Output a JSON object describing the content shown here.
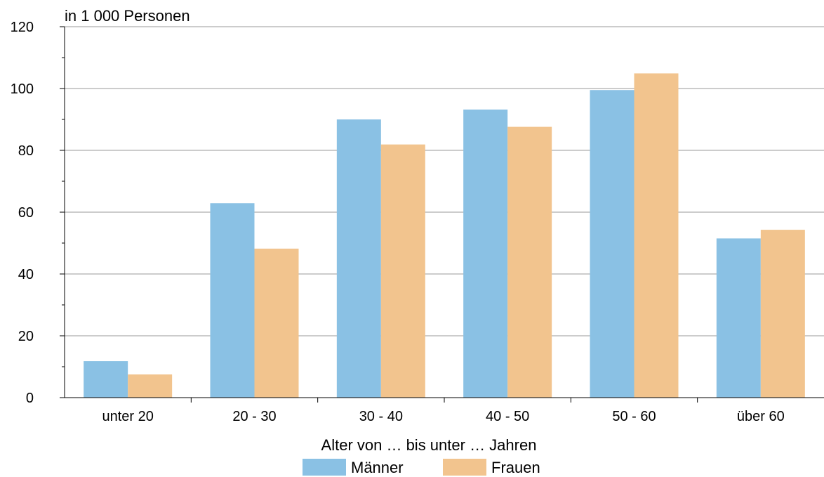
{
  "chart_data": {
    "type": "bar",
    "ylabel": "in 1 000 Personen",
    "xlabel": "Alter von … bis unter … Jahren",
    "categories": [
      "unter 20",
      "20 - 30",
      "30 - 40",
      "40 - 50",
      "50 - 60",
      "über 60"
    ],
    "series": [
      {
        "name": "Männer",
        "color": "#8ac1e4",
        "values": [
          11.8,
          62.9,
          90,
          93.2,
          99.5,
          51.5
        ]
      },
      {
        "name": "Frauen",
        "color": "#f2c48e",
        "values": [
          7.5,
          48.2,
          81.9,
          87.6,
          104.9,
          54.3
        ]
      }
    ],
    "ylim": [
      0,
      120
    ],
    "yticks": [
      0,
      20,
      40,
      60,
      80,
      100,
      120
    ],
    "grid": true,
    "legend_position": "bottom-center"
  }
}
